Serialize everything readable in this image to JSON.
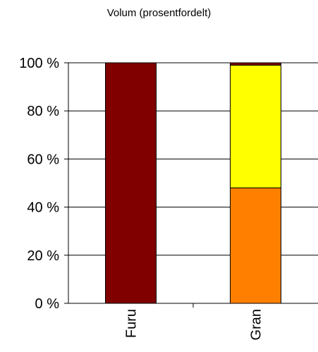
{
  "chart_data": {
    "type": "bar",
    "stacked": true,
    "title": "Volum (prosentfordelt)",
    "categories": [
      "Furu",
      "Gran"
    ],
    "series": [
      {
        "color": "#FF8000",
        "values": [
          0,
          48
        ]
      },
      {
        "color": "#FFFF00",
        "values": [
          0,
          51
        ]
      },
      {
        "color": "#800000",
        "values": [
          100,
          1
        ]
      }
    ],
    "ylim": [
      0,
      100
    ],
    "yticks": [
      0,
      20,
      40,
      60,
      80,
      100
    ],
    "ytick_labels": [
      "0 %",
      "20 %",
      "40 %",
      "60 %",
      "80 %",
      "100 %"
    ],
    "grid": true,
    "legend": "none",
    "xlabel": "",
    "ylabel": ""
  }
}
